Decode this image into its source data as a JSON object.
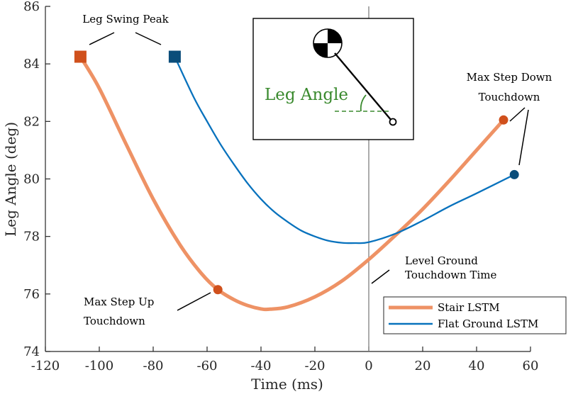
{
  "chart_data": {
    "type": "line",
    "title": "",
    "xlabel": "Time (ms)",
    "ylabel": "Leg Angle (deg)",
    "xlim": [
      -120,
      60
    ],
    "ylim": [
      74,
      86
    ],
    "xticks": [
      -120,
      -100,
      -80,
      -60,
      -40,
      -20,
      0,
      20,
      40,
      60
    ],
    "yticks": [
      74,
      76,
      78,
      80,
      82,
      84,
      86
    ],
    "grid": false,
    "legend_position": "bottom-right",
    "reference_line_x": 0,
    "series": [
      {
        "name": "Stair LSTM",
        "color": "#ee9265",
        "marker_color": "#d0501c",
        "x": [
          -107,
          -100,
          -90,
          -80,
          -70,
          -62,
          -56,
          -50,
          -45,
          -40,
          -37,
          -30,
          -20,
          -10,
          0,
          10,
          20,
          30,
          40,
          50
        ],
        "y": [
          84.25,
          83.15,
          81.2,
          79.3,
          77.7,
          76.7,
          76.15,
          75.8,
          75.6,
          75.48,
          75.47,
          75.55,
          75.9,
          76.45,
          77.2,
          78.05,
          78.95,
          79.95,
          81.0,
          82.05
        ],
        "markers": [
          {
            "x": -107,
            "y": 84.25,
            "shape": "square"
          },
          {
            "x": -56,
            "y": 76.15,
            "shape": "circle"
          },
          {
            "x": 50,
            "y": 82.05,
            "shape": "circle"
          }
        ]
      },
      {
        "name": "Flat Ground LSTM",
        "color": "#0872bd",
        "marker_color": "#0a4d7a",
        "x": [
          -72,
          -65,
          -60,
          -55,
          -50,
          -45,
          -40,
          -35,
          -30,
          -25,
          -20,
          -15,
          -10,
          -5,
          0,
          10,
          20,
          30,
          40,
          54
        ],
        "y": [
          84.25,
          82.85,
          82.0,
          81.2,
          80.5,
          79.85,
          79.3,
          78.85,
          78.5,
          78.2,
          78.0,
          77.85,
          77.78,
          77.77,
          77.8,
          78.1,
          78.55,
          79.05,
          79.5,
          80.15
        ],
        "markers": [
          {
            "x": -72,
            "y": 84.25,
            "shape": "square"
          },
          {
            "x": 54,
            "y": 80.15,
            "shape": "circle"
          }
        ]
      }
    ],
    "annotations": [
      {
        "lines": [
          "Leg Swing Peak"
        ]
      },
      {
        "lines": [
          "Max Step Down",
          "Touchdown"
        ]
      },
      {
        "lines": [
          "Level Ground",
          "Touchdown Time"
        ]
      },
      {
        "lines": [
          "Max Step Up",
          "Touchdown"
        ]
      }
    ],
    "inset": {
      "label": "Leg Angle",
      "label_color": "#3a8a2e"
    }
  }
}
